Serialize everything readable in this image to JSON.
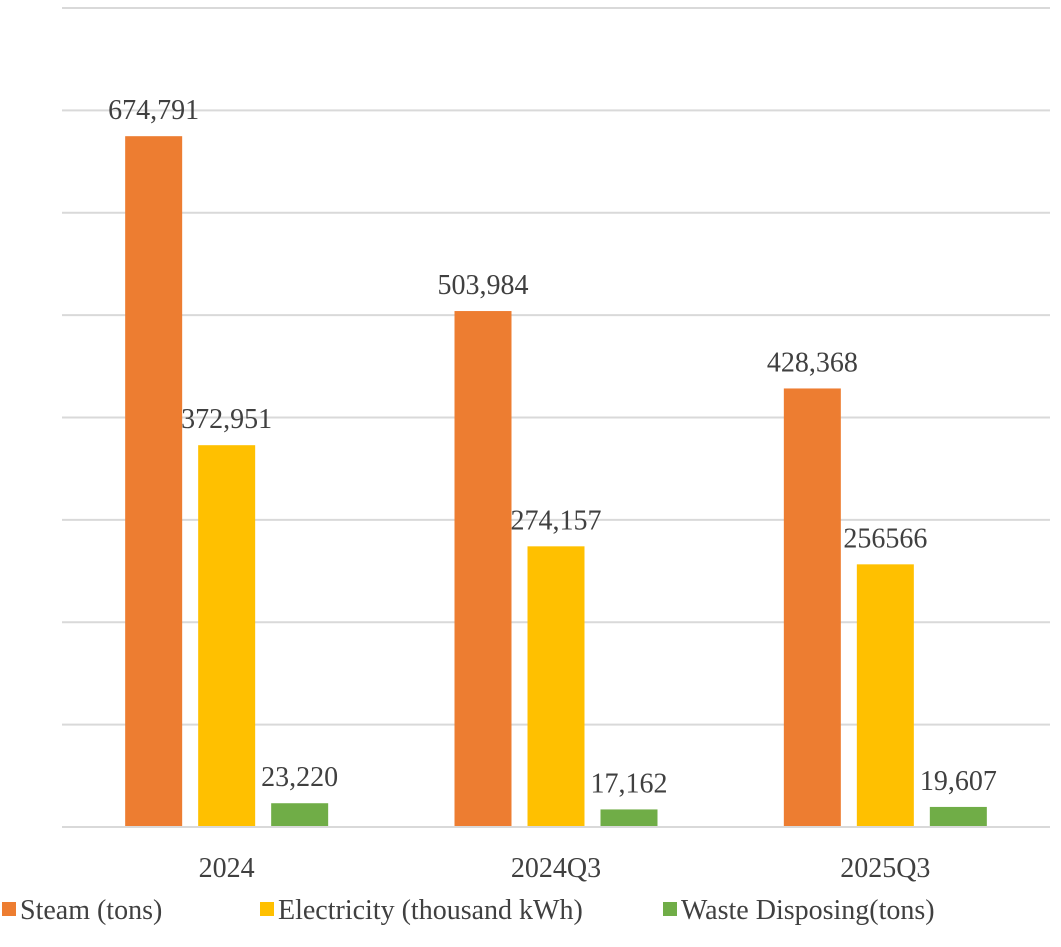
{
  "chart_data": {
    "type": "bar",
    "title": "",
    "xlabel": "",
    "ylabel": "",
    "categories": [
      "2024",
      "2024Q3",
      "2025Q3"
    ],
    "series": [
      {
        "name": "Steam (tons)",
        "color": "#ED7D31",
        "values": [
          674791,
          503984,
          428368
        ],
        "labels": [
          "674,791",
          "503,984",
          "428,368"
        ]
      },
      {
        "name": "Electricity (thousand kWh)",
        "color": "#FFC000",
        "values": [
          372951,
          274157,
          256566
        ],
        "labels": [
          "372,951",
          "274,157",
          "256566"
        ]
      },
      {
        "name": "Waste Disposing(tons)",
        "color": "#70AD47",
        "values": [
          23220,
          17162,
          19607
        ],
        "labels": [
          "23,220",
          "17,162",
          "19,607"
        ]
      }
    ],
    "ylim": [
      0,
      800000
    ],
    "grid": true,
    "gridline_count": 8,
    "y_axis_labels_shown": false,
    "legend_position": "bottom"
  }
}
